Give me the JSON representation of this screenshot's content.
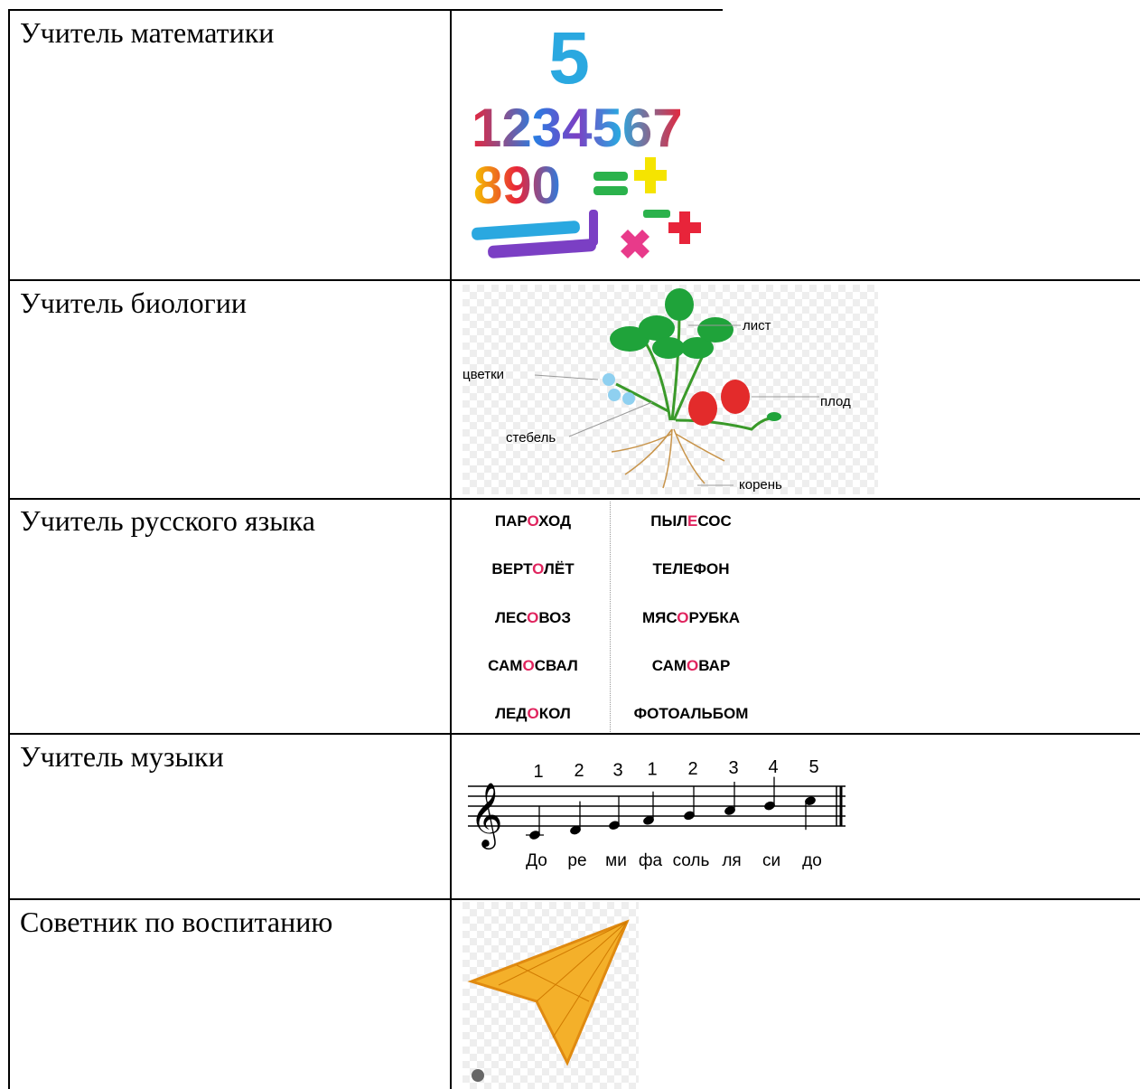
{
  "table": {
    "rows": [
      {
        "label": "Учитель математики",
        "image": {
          "top": "5",
          "row1": "1234567",
          "row2": "890"
        }
      },
      {
        "label": "Учитель биологии",
        "image": {
          "labels": [
            "лист",
            "цветки",
            "плод",
            "стебель",
            "корень"
          ]
        }
      },
      {
        "label": "Учитель русского языка",
        "image": {
          "columns": [
            [
              [
                "ПАР",
                "О",
                "ХОД"
              ],
              [
                "ВЕРТ",
                "О",
                "ЛЁТ"
              ],
              [
                "ЛЕС",
                "О",
                "ВОЗ"
              ],
              [
                "САМ",
                "О",
                "СВАЛ"
              ],
              [
                "ЛЕД",
                "О",
                "КОЛ"
              ]
            ],
            [
              [
                "ПЫЛ",
                "Е",
                "СОС"
              ],
              [
                "ТЕЛЕФОН"
              ],
              [
                "МЯС",
                "О",
                "РУБКА"
              ],
              [
                "САМ",
                "О",
                "ВАР"
              ],
              [
                "ФОТОАЛЬБОМ"
              ]
            ]
          ]
        }
      },
      {
        "label": "Учитель музыки",
        "image": {
          "fingers": [
            "1",
            "2",
            "3",
            "1",
            "2",
            "3",
            "4",
            "5"
          ],
          "syllables": [
            "До",
            "ре",
            "ми",
            "фа",
            "соль",
            "ля",
            "си",
            "до"
          ]
        }
      },
      {
        "label": "Советник по воспитанию"
      }
    ]
  }
}
